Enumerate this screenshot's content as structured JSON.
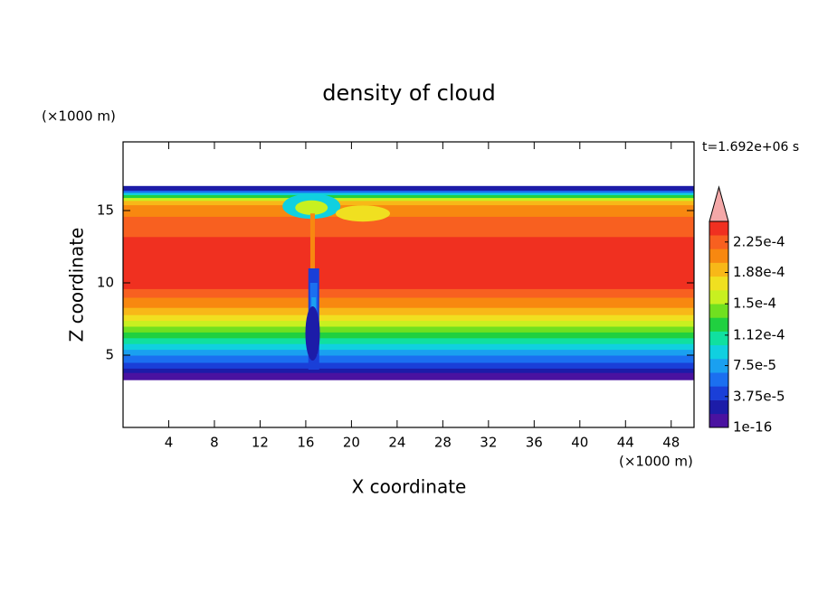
{
  "chart_data": {
    "type": "contour",
    "title": "density of cloud",
    "time_label": "t=1.692e+06 s",
    "xlabel": "X coordinate",
    "ylabel": "Z coordinate",
    "x_units": "(×1000 m)",
    "y_units": "(×1000 m)",
    "xlim": [
      0,
      50
    ],
    "ylim": [
      0,
      19.75
    ],
    "xticks": [
      4,
      8,
      12,
      16,
      20,
      24,
      28,
      32,
      36,
      40,
      44,
      48
    ],
    "yticks": [
      5,
      10,
      15
    ],
    "colorbar": {
      "clim": [
        1e-16,
        0.00025
      ],
      "ticks": [
        {
          "value": 1e-16,
          "label": "1e-16"
        },
        {
          "value": 3.75e-05,
          "label": "3.75e-5"
        },
        {
          "value": 7.5e-05,
          "label": "7.5e-5"
        },
        {
          "value": 0.000112,
          "label": "1.12e-4"
        },
        {
          "value": 0.00015,
          "label": "1.5e-4"
        },
        {
          "value": 0.000188,
          "label": "1.88e-4"
        },
        {
          "value": 0.000225,
          "label": "2.25e-4"
        }
      ],
      "colors": [
        "#4a12a0",
        "#1c1ca8",
        "#1a3fd8",
        "#1b6ff0",
        "#1aa0f0",
        "#10d0e0",
        "#10e0a0",
        "#20d040",
        "#70e020",
        "#c8f020",
        "#f0e020",
        "#f8b818",
        "#f88810",
        "#f86020",
        "#f03020"
      ],
      "extend_color": "#f4a8a8"
    }
  }
}
